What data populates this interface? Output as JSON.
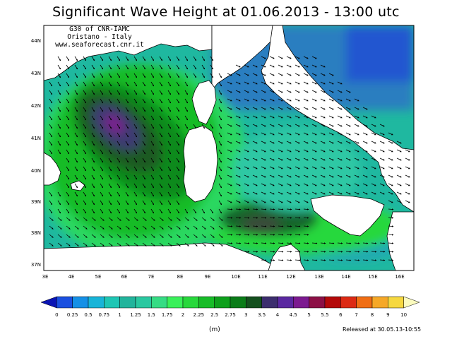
{
  "title": "Significant Wave Height at 01.06.2013 - 13:00 utc",
  "credit": {
    "line1": "G30 of CNR-IAMC",
    "line2": "Oristano - Italy",
    "line3": "www.seaforecast.cnr.it"
  },
  "axes": {
    "lat_labels": [
      "44N",
      "43N",
      "42N",
      "41N",
      "40N",
      "39N",
      "38N",
      "37N"
    ],
    "lon_labels": [
      "3E",
      "4E",
      "5E",
      "6E",
      "7E",
      "8E",
      "9E",
      "10E",
      "11E",
      "12E",
      "13E",
      "14E",
      "15E",
      "16E"
    ]
  },
  "colorbar": {
    "unit": "(m)",
    "tick_labels": [
      "0",
      "0.25",
      "0.5",
      "0.75",
      "1",
      "1.25",
      "1.5",
      "1.75",
      "2",
      "2.25",
      "2.5",
      "2.75",
      "3",
      "3.5",
      "4",
      "4.5",
      "5",
      "5.5",
      "6",
      "7",
      "8",
      "9",
      "10"
    ],
    "colors": [
      "#0a14b4",
      "#1a50e0",
      "#1590e6",
      "#18b4d8",
      "#1ec6b4",
      "#22b49c",
      "#2ac8a0",
      "#36dc84",
      "#3af05a",
      "#28d83c",
      "#18bc28",
      "#0ea01c",
      "#0a7c18",
      "#14501e",
      "#3c2e6e",
      "#5a28a0",
      "#7c1a90",
      "#8c1046",
      "#b40a0a",
      "#dc2a14",
      "#f06e14",
      "#f5a828",
      "#f6d840",
      "#fbfbbe"
    ]
  },
  "released": "Released at 30.05.13-10:55"
}
